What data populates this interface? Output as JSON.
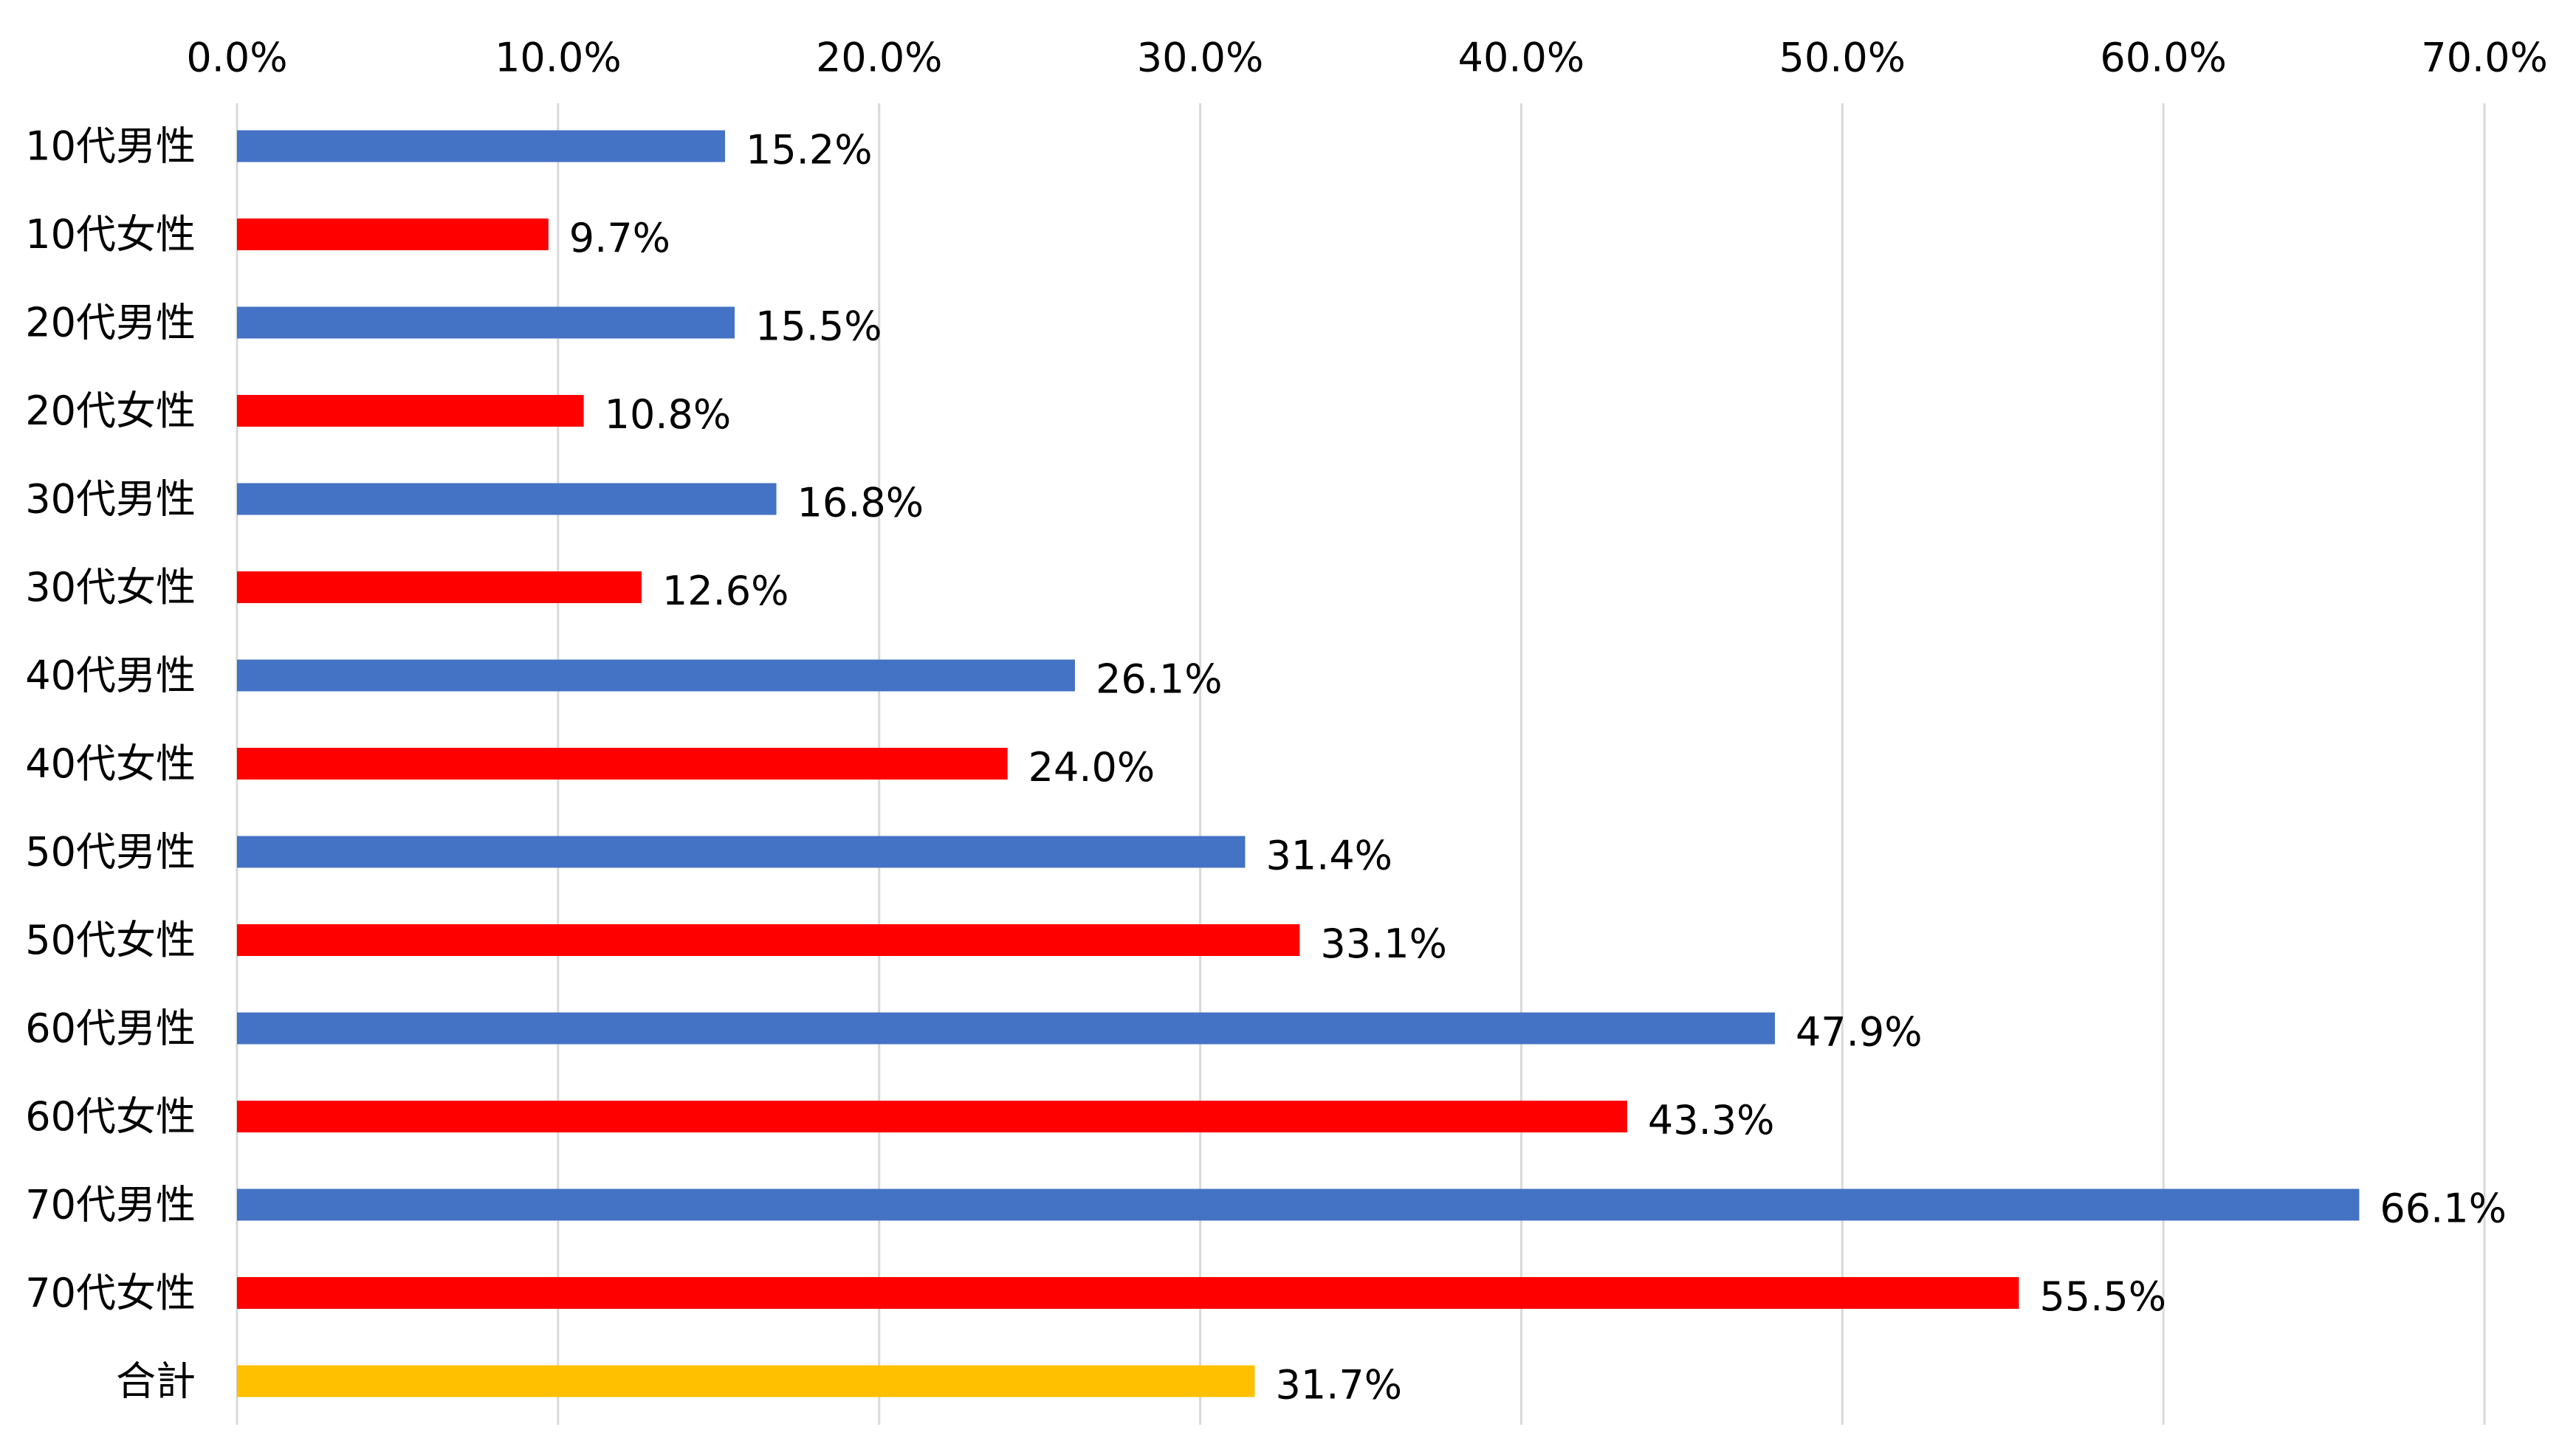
{
  "chart_data": {
    "type": "bar",
    "orientation": "horizontal",
    "title": "",
    "xlabel": "",
    "ylabel": "",
    "xlim": [
      0,
      70
    ],
    "tick_values": [
      0,
      10,
      20,
      30,
      40,
      50,
      60,
      70
    ],
    "tick_labels": [
      "0.0%",
      "10.0%",
      "20.0%",
      "30.0%",
      "40.0%",
      "50.0%",
      "60.0%",
      "70.0%"
    ],
    "axis_position": "top",
    "grid": true,
    "legend": false,
    "categories": [
      "10代男性",
      "10代女性",
      "20代男性",
      "20代女性",
      "30代男性",
      "30代女性",
      "40代男性",
      "40代女性",
      "50代男性",
      "50代女性",
      "60代男性",
      "60代女性",
      "70代男性",
      "70代女性",
      "合計"
    ],
    "values": [
      15.2,
      9.7,
      15.5,
      10.8,
      16.8,
      12.6,
      26.1,
      24.0,
      31.4,
      33.1,
      47.9,
      43.3,
      66.1,
      55.5,
      31.7
    ],
    "value_labels": [
      "15.2%",
      "9.7%",
      "15.5%",
      "10.8%",
      "16.8%",
      "12.6%",
      "26.1%",
      "24.0%",
      "31.4%",
      "33.1%",
      "47.9%",
      "43.3%",
      "66.1%",
      "55.5%",
      "31.7%"
    ],
    "bar_colors": [
      "#4472C4",
      "#FF0000",
      "#4472C4",
      "#FF0000",
      "#4472C4",
      "#FF0000",
      "#4472C4",
      "#FF0000",
      "#4472C4",
      "#FF0000",
      "#4472C4",
      "#FF0000",
      "#4472C4",
      "#FF0000",
      "#FFC000"
    ]
  }
}
